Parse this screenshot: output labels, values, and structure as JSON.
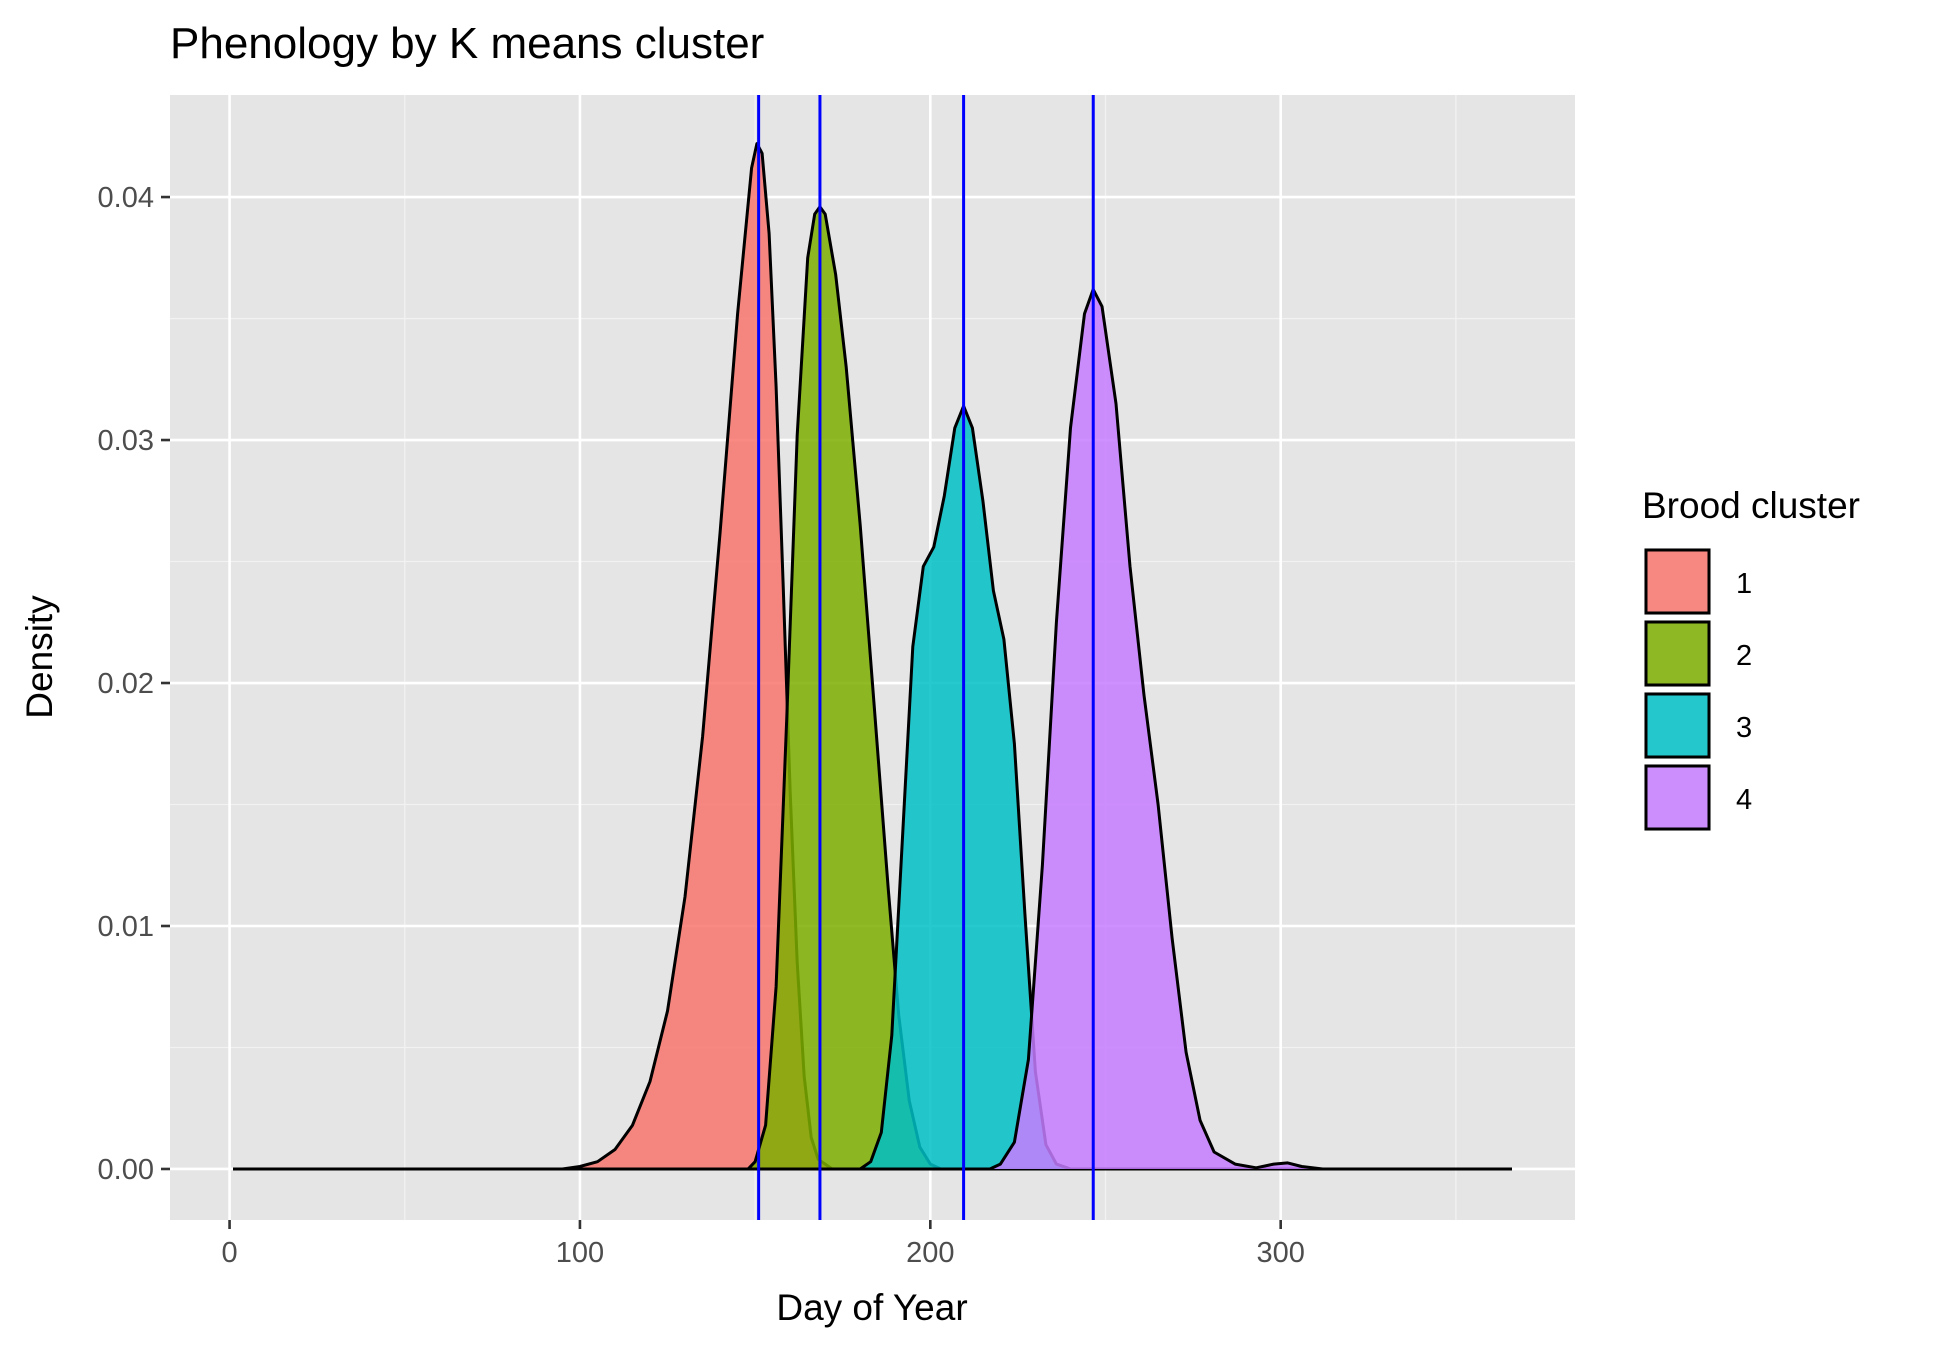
{
  "chart_data": {
    "type": "area",
    "title": "Phenology by K means cluster",
    "xlabel": "Day of Year",
    "ylabel": "Density",
    "xlim": [
      -17,
      384
    ],
    "ylim": [
      -0.0021,
      0.0442
    ],
    "x_ticks": [
      0,
      100,
      200,
      300
    ],
    "x_tick_labels": [
      "0",
      "100",
      "200",
      "300"
    ],
    "y_ticks": [
      0.0,
      0.01,
      0.02,
      0.03,
      0.04
    ],
    "y_tick_labels": [
      "0.00",
      "0.01",
      "0.02",
      "0.03",
      "0.04"
    ],
    "grid": true,
    "legend": {
      "title": "Brood cluster",
      "placement": "right"
    },
    "series": [
      {
        "name": "1",
        "color": "#F8766D",
        "points": [
          [
            1,
            0
          ],
          [
            95,
            0
          ],
          [
            100,
            0.0001
          ],
          [
            105,
            0.0003
          ],
          [
            110,
            0.0008
          ],
          [
            115,
            0.0018
          ],
          [
            120,
            0.0036
          ],
          [
            125,
            0.0065
          ],
          [
            130,
            0.0112
          ],
          [
            135,
            0.0178
          ],
          [
            140,
            0.0262
          ],
          [
            145,
            0.0352
          ],
          [
            149,
            0.0412
          ],
          [
            150.5,
            0.0422
          ],
          [
            152,
            0.0418
          ],
          [
            154,
            0.0385
          ],
          [
            156,
            0.0322
          ],
          [
            158,
            0.024
          ],
          [
            160,
            0.0155
          ],
          [
            162,
            0.0085
          ],
          [
            164,
            0.0038
          ],
          [
            166,
            0.0013
          ],
          [
            168,
            0.0004
          ],
          [
            172,
            0
          ],
          [
            366,
            0
          ]
        ]
      },
      {
        "name": "2",
        "color": "#7CAE00",
        "points": [
          [
            1,
            0
          ],
          [
            148,
            0
          ],
          [
            150,
            0.0003
          ],
          [
            153,
            0.0018
          ],
          [
            156,
            0.0075
          ],
          [
            159,
            0.0185
          ],
          [
            162,
            0.0302
          ],
          [
            165,
            0.0375
          ],
          [
            167,
            0.0393
          ],
          [
            168.5,
            0.0396
          ],
          [
            170,
            0.0393
          ],
          [
            173,
            0.0368
          ],
          [
            176,
            0.033
          ],
          [
            180,
            0.0265
          ],
          [
            184,
            0.019
          ],
          [
            188,
            0.0115
          ],
          [
            191,
            0.0063
          ],
          [
            194,
            0.0028
          ],
          [
            197,
            0.0009
          ],
          [
            200,
            0.0002
          ],
          [
            203,
            0
          ],
          [
            366,
            0
          ]
        ]
      },
      {
        "name": "3",
        "color": "#00BFC4",
        "points": [
          [
            1,
            0
          ],
          [
            180,
            0
          ],
          [
            183,
            0.0003
          ],
          [
            186,
            0.0015
          ],
          [
            189,
            0.0055
          ],
          [
            192,
            0.0135
          ],
          [
            195,
            0.0215
          ],
          [
            198,
            0.0248
          ],
          [
            201,
            0.0256
          ],
          [
            204,
            0.0277
          ],
          [
            207,
            0.0305
          ],
          [
            209.5,
            0.0314
          ],
          [
            212,
            0.0305
          ],
          [
            215,
            0.0275
          ],
          [
            218,
            0.0238
          ],
          [
            221,
            0.0218
          ],
          [
            224,
            0.0175
          ],
          [
            227,
            0.0105
          ],
          [
            230,
            0.004
          ],
          [
            233,
            0.001
          ],
          [
            236,
            0.0002
          ],
          [
            240,
            0
          ],
          [
            366,
            0
          ]
        ]
      },
      {
        "name": "4",
        "color": "#C77CFF",
        "points": [
          [
            1,
            0
          ],
          [
            217,
            0
          ],
          [
            220,
            0.0002
          ],
          [
            224,
            0.0011
          ],
          [
            228,
            0.0045
          ],
          [
            232,
            0.0125
          ],
          [
            236,
            0.0225
          ],
          [
            240,
            0.0305
          ],
          [
            244,
            0.0352
          ],
          [
            246.5,
            0.0362
          ],
          [
            249,
            0.0355
          ],
          [
            253,
            0.0315
          ],
          [
            257,
            0.0248
          ],
          [
            261,
            0.0195
          ],
          [
            265,
            0.015
          ],
          [
            269,
            0.0095
          ],
          [
            273,
            0.0048
          ],
          [
            277,
            0.002
          ],
          [
            281,
            0.0007
          ],
          [
            287,
            0.0002
          ],
          [
            293,
            5e-05
          ],
          [
            298,
            0.0002
          ],
          [
            302,
            0.00025
          ],
          [
            306,
            0.0001
          ],
          [
            312,
            0
          ],
          [
            366,
            0
          ]
        ]
      }
    ],
    "vlines": {
      "color": "#0000FF",
      "x": [
        151,
        168.5,
        209.5,
        246.5
      ]
    }
  }
}
